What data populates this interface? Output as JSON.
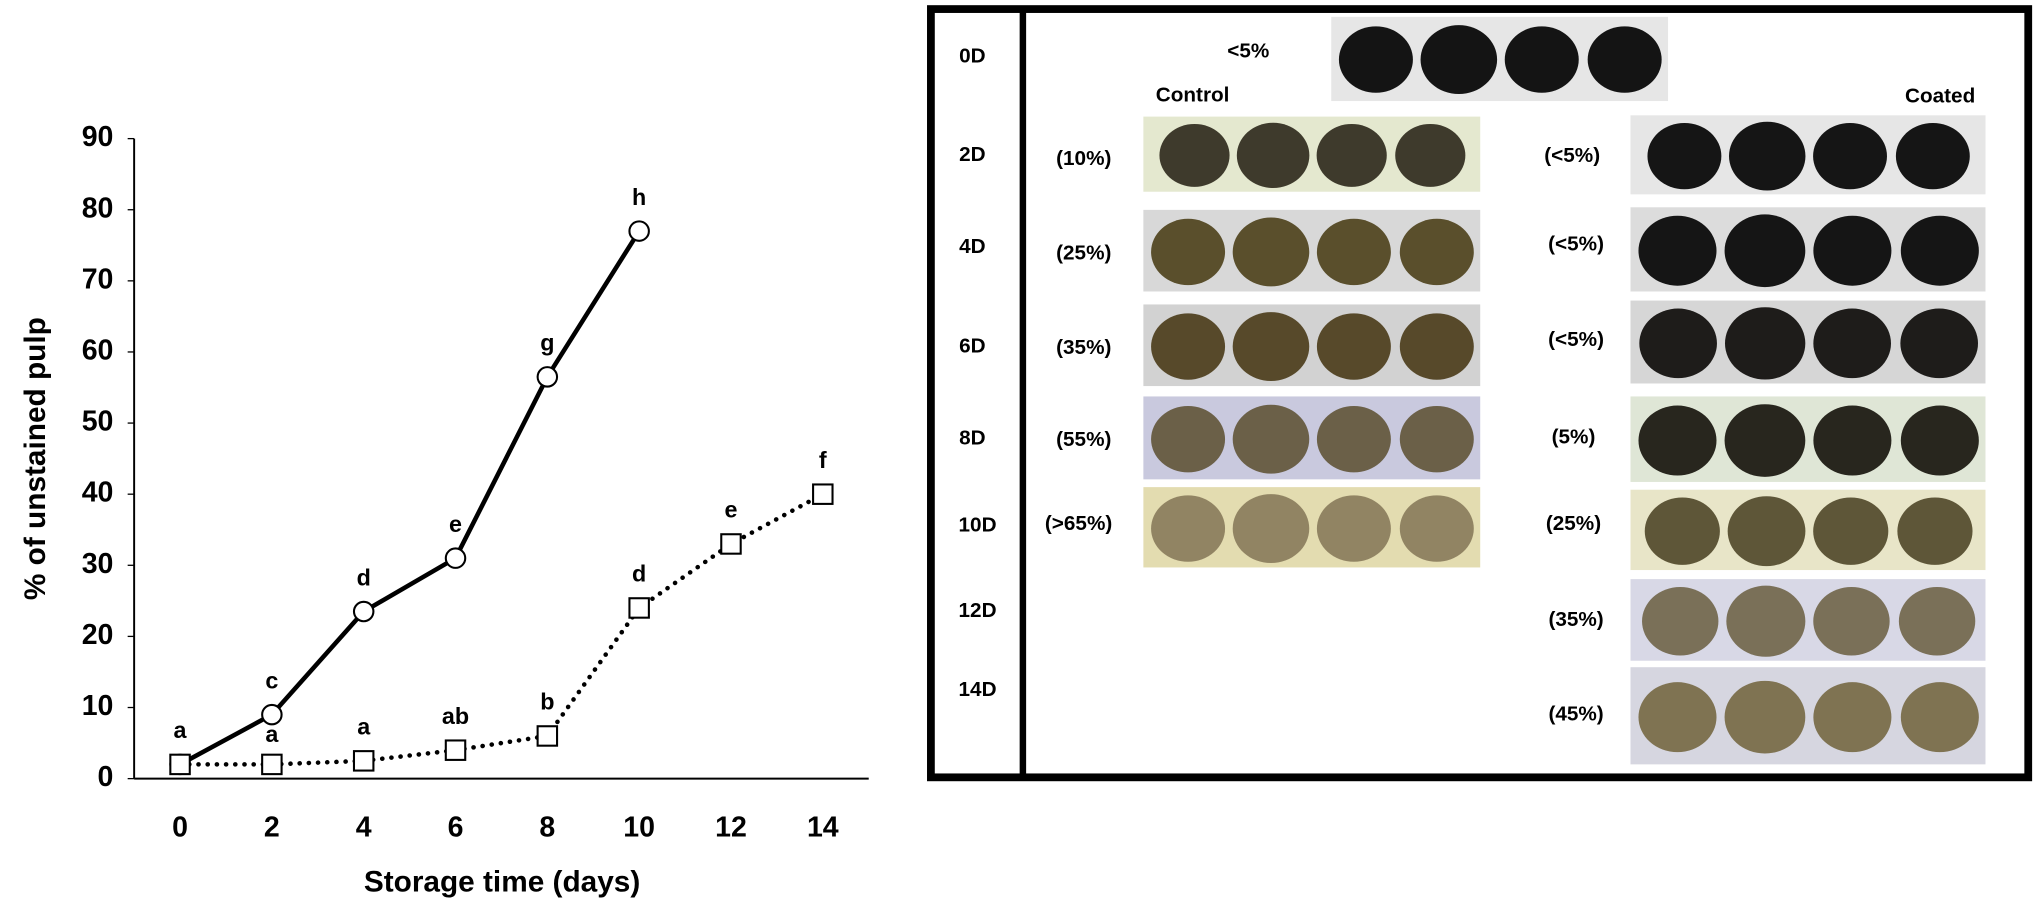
{
  "chart_data": {
    "type": "line",
    "x_label": "Storage time (days)",
    "y_label": "% of unstained pulp",
    "x": [
      0,
      2,
      4,
      6,
      8,
      10,
      12,
      14
    ],
    "series": [
      {
        "color": "#000000",
        "marker": "circle",
        "line_style": "solid",
        "values": [
          2,
          9,
          23.5,
          31,
          56.5,
          77,
          null,
          null
        ],
        "annotations": [
          "a",
          "c",
          "d",
          "e",
          "g",
          "h",
          null,
          null
        ]
      },
      {
        "color": "#000000",
        "marker": "square",
        "line_style": "dotted",
        "values": [
          2,
          2,
          2.5,
          4,
          6,
          24,
          33,
          40
        ],
        "annotations": [
          null,
          "a",
          "a",
          "ab",
          "b",
          "d",
          "e",
          "f"
        ]
      }
    ],
    "xlim": [
      -1,
      15
    ],
    "ylim": [
      0,
      90
    ],
    "xticks": [
      0,
      2,
      4,
      6,
      8,
      10,
      12,
      14
    ],
    "yticks": [
      0,
      10,
      20,
      30,
      40,
      50,
      60,
      70,
      80,
      90
    ],
    "grid": false
  },
  "photo_panel": {
    "row_labels": [
      "0D",
      "2D",
      "4D",
      "6D",
      "8D",
      "10D",
      "12D",
      "14D"
    ],
    "initial_label": "<5%",
    "control_title": "Control",
    "coated_title": "Coated",
    "control_labels": [
      "(10%)",
      "(25%)",
      "(35%)",
      "(55%)",
      "(>65%)"
    ],
    "coated_labels": [
      "(<5%)",
      "(<5%)",
      "(<5%)",
      "(5%)",
      "(25%)",
      "(35%)",
      "(45%)"
    ]
  }
}
